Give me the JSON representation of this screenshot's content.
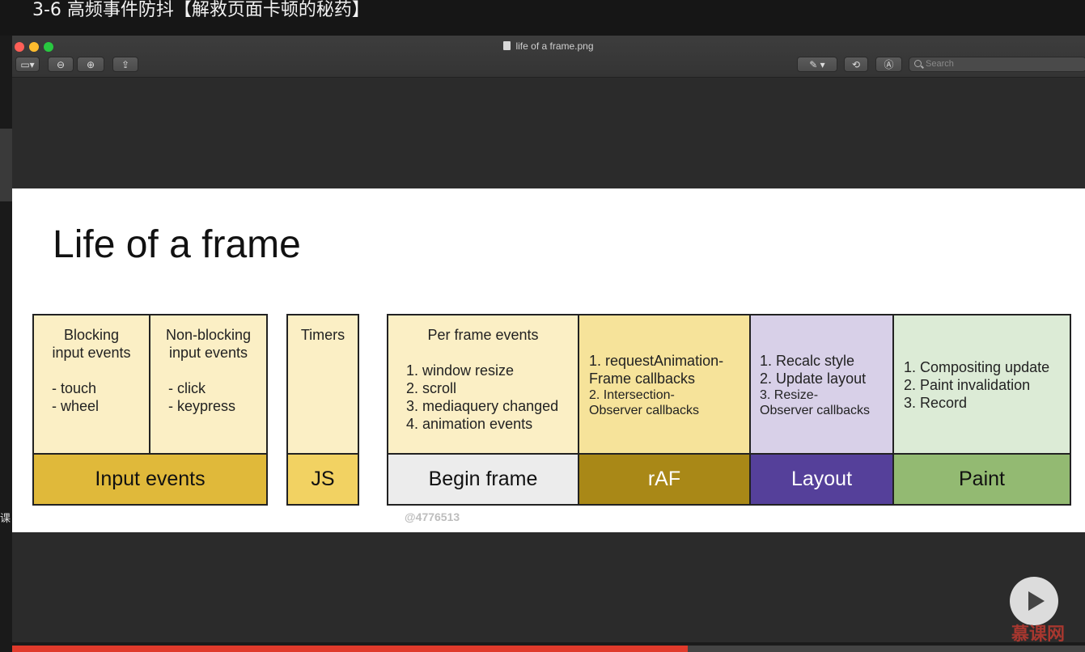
{
  "course": {
    "title": "3-6 高频事件防抖【解救页面卡顿的秘药】"
  },
  "left_panel": {
    "char": "课"
  },
  "window": {
    "file_name": "life of a frame.png",
    "search_placeholder": "Search"
  },
  "slide": {
    "title": "Life of a frame",
    "watermark": "@4776513",
    "groups": {
      "input": {
        "blocking": {
          "heading": [
            "Blocking",
            "input events"
          ],
          "items": [
            "- touch",
            "- wheel"
          ]
        },
        "non_blocking": {
          "heading": [
            "Non-blocking",
            "input events"
          ],
          "items": [
            "- click",
            "- keypress"
          ]
        },
        "label": "Input events"
      },
      "js": {
        "heading": "Timers",
        "label": "JS"
      },
      "begin_frame": {
        "heading": "Per frame events",
        "items": [
          "1. window resize",
          "2. scroll",
          "3. mediaquery changed",
          "4. animation events"
        ],
        "label": "Begin frame"
      },
      "raf": {
        "items": [
          "1. requestAnimation-",
          "Frame callbacks",
          "2. Intersection-",
          "Observer callbacks"
        ],
        "label": "rAF"
      },
      "layout": {
        "items": [
          "1. Recalc style",
          "2. Update layout",
          "3. Resize-",
          "Observer callbacks"
        ],
        "label": "Layout"
      },
      "paint": {
        "items": [
          "1. Compositing update",
          "2. Paint invalidation",
          "3. Record"
        ],
        "label": "Paint"
      }
    }
  },
  "player": {
    "progress_fraction": 0.63,
    "brand": "慕课网"
  },
  "colors": {
    "input_top": "#fbefc5",
    "input_label": "#e0b93a",
    "js_label": "#f2d262",
    "begin_label": "#ececec",
    "raf_top": "#f6e39a",
    "raf_label": "#a98817",
    "layout_top": "#d8d0e8",
    "layout_label": "#55409a",
    "paint_top": "#dcebd6",
    "paint_label": "#93ba72"
  }
}
